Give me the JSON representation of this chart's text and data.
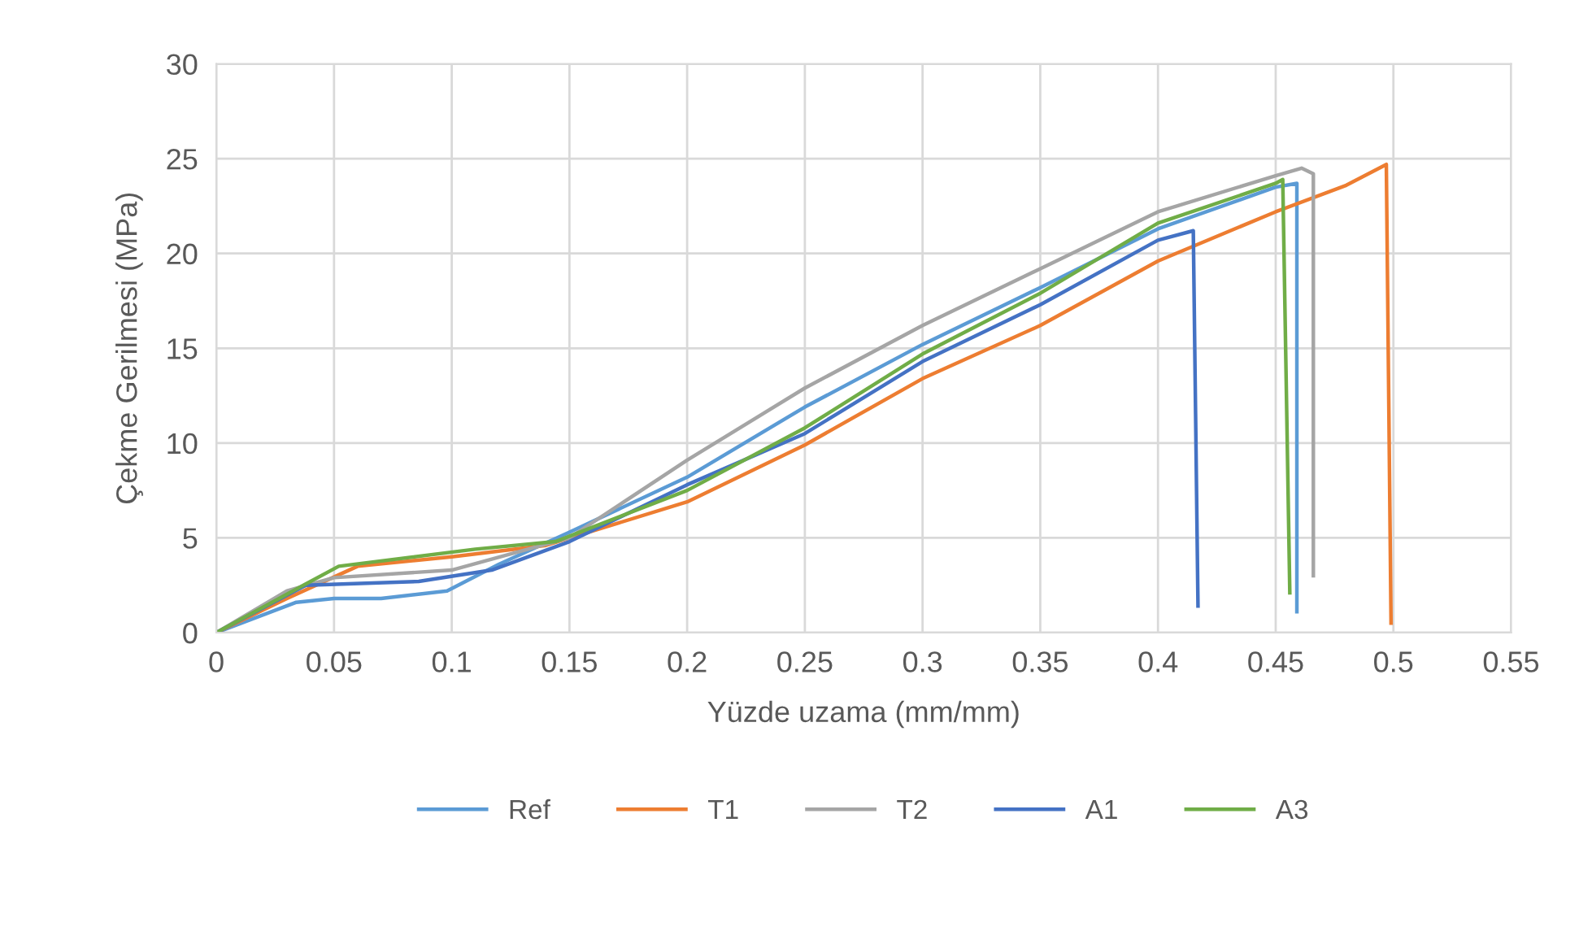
{
  "chart_data": {
    "type": "line",
    "xlabel": "Yüzde uzama (mm/mm)",
    "ylabel": "Çekme Gerilmesi (MPa)",
    "xlim": [
      0,
      0.55
    ],
    "xticks": [
      0,
      0.05,
      0.1,
      0.15,
      0.2,
      0.25,
      0.3,
      0.35,
      0.4,
      0.45,
      0.5,
      0.55
    ],
    "ylim": [
      0,
      30
    ],
    "yticks": [
      0,
      5,
      10,
      15,
      20,
      25,
      30
    ],
    "grid": true,
    "legend": "bottom",
    "line_style": "solid",
    "marker": "none",
    "series": [
      {
        "name": "Ref",
        "color": "#5b9bd5",
        "x": [
          0,
          0.034,
          0.05,
          0.07,
          0.098,
          0.12,
          0.15,
          0.2,
          0.25,
          0.3,
          0.35,
          0.4,
          0.45,
          0.459,
          0.459
        ],
        "values": [
          0,
          1.6,
          1.8,
          1.8,
          2.2,
          3.6,
          5.3,
          8.2,
          11.9,
          15.2,
          18.2,
          21.3,
          23.5,
          23.7,
          1.1
        ]
      },
      {
        "name": "T1",
        "color": "#ed7d31",
        "x": [
          0,
          0.03,
          0.06,
          0.1,
          0.14,
          0.2,
          0.25,
          0.3,
          0.35,
          0.4,
          0.45,
          0.48,
          0.497,
          0.499
        ],
        "values": [
          0,
          1.8,
          3.5,
          4.0,
          4.6,
          6.9,
          9.9,
          13.4,
          16.2,
          19.6,
          22.2,
          23.6,
          24.7,
          0.5
        ]
      },
      {
        "name": "T2",
        "color": "#a5a5a5",
        "x": [
          0,
          0.03,
          0.05,
          0.1,
          0.15,
          0.2,
          0.25,
          0.3,
          0.35,
          0.4,
          0.45,
          0.461,
          0.466,
          0.466
        ],
        "values": [
          0,
          2.2,
          2.9,
          3.3,
          5.0,
          9.1,
          12.9,
          16.2,
          19.2,
          22.2,
          24.1,
          24.5,
          24.2,
          3.0
        ]
      },
      {
        "name": "A1",
        "color": "#4472c4",
        "x": [
          0,
          0.038,
          0.086,
          0.117,
          0.15,
          0.2,
          0.25,
          0.3,
          0.35,
          0.4,
          0.415,
          0.417
        ],
        "values": [
          0,
          2.5,
          2.7,
          3.3,
          4.8,
          7.8,
          10.5,
          14.3,
          17.3,
          20.7,
          21.2,
          1.4
        ]
      },
      {
        "name": "A3",
        "color": "#70ad47",
        "x": [
          0,
          0.037,
          0.052,
          0.11,
          0.144,
          0.2,
          0.25,
          0.3,
          0.35,
          0.4,
          0.45,
          0.453,
          0.456
        ],
        "values": [
          0,
          2.5,
          3.5,
          4.4,
          4.8,
          7.5,
          10.8,
          14.7,
          17.9,
          21.6,
          23.7,
          23.9,
          2.1
        ]
      }
    ]
  }
}
